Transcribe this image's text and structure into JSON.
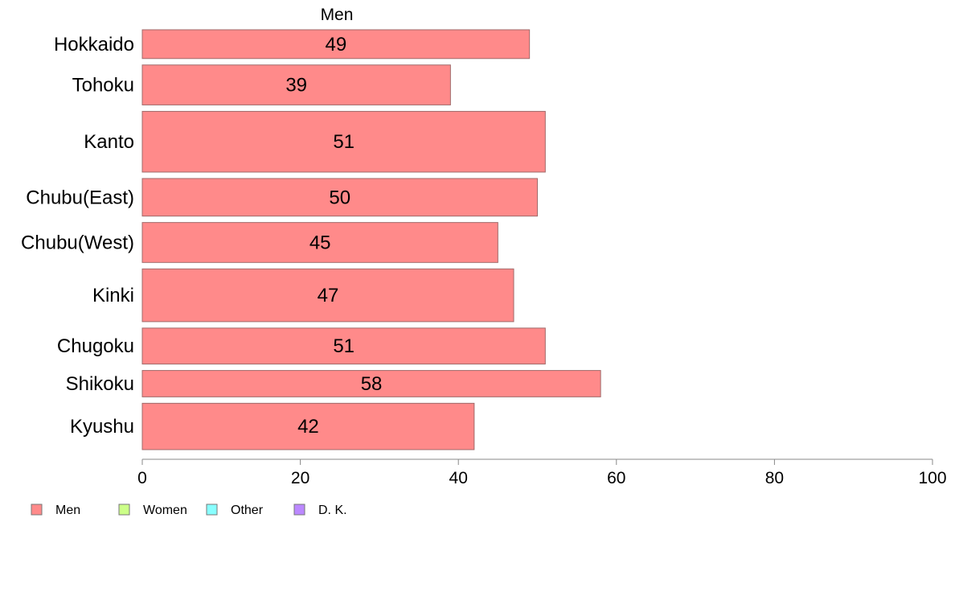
{
  "chart_data": {
    "type": "bar",
    "orientation": "horizontal",
    "title": "Men",
    "categories": [
      "Hokkaido",
      "Tohoku",
      "Kanto",
      "Chubu(East)",
      "Chubu(West)",
      "Kinki",
      "Chugoku",
      "Shikoku",
      "Kyushu"
    ],
    "category_weights": [
      36,
      50,
      76,
      47,
      50,
      66,
      45,
      33,
      58
    ],
    "series": [
      {
        "name": "Men",
        "values": [
          49,
          39,
          51,
          50,
          45,
          47,
          51,
          58,
          42
        ],
        "color": "#ff8a8a"
      }
    ],
    "data_labels": [
      "49",
      "39",
      "51",
      "50",
      "45",
      "47",
      "51",
      "58",
      "42"
    ],
    "xlim": [
      0,
      100
    ],
    "x_ticks": [
      0,
      20,
      40,
      60,
      80,
      100
    ],
    "x_tick_labels": [
      "0",
      "20",
      "40",
      "60",
      "80",
      "100"
    ],
    "legend": {
      "placement": "bottom-left",
      "items": [
        {
          "label": "Men",
          "color": "#ff8a8a"
        },
        {
          "label": "Women",
          "color": "#ccff88"
        },
        {
          "label": "Other",
          "color": "#88ffff"
        },
        {
          "label": "D. K.",
          "color": "#bb88ff"
        }
      ]
    },
    "grid": false
  }
}
